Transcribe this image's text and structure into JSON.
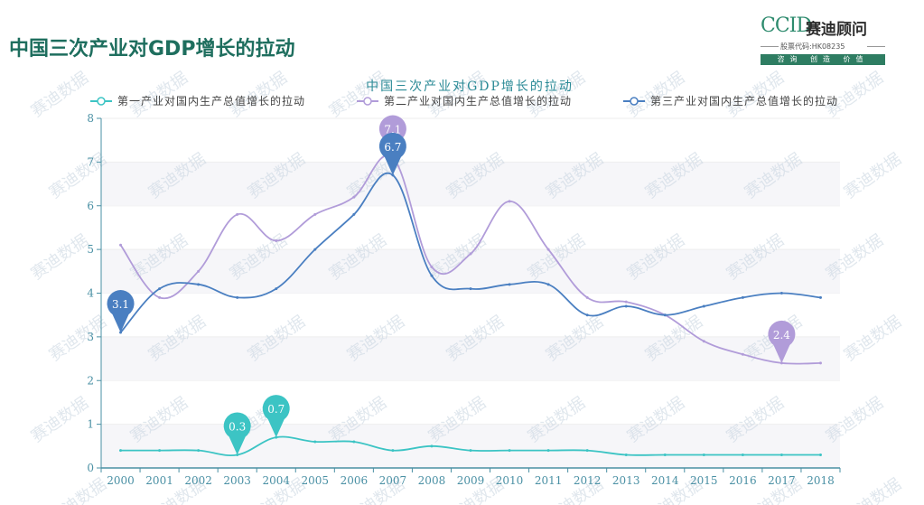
{
  "page": {
    "title": "中国三次产业对GDP增长的拉动"
  },
  "logo": {
    "brand": "CCID",
    "name": "赛迪顾问",
    "code": "股票代码:HK08235",
    "slogan": "咨询 创造 价值"
  },
  "watermark_text": "赛迪数据",
  "colors": {
    "series1": "#3cc4c4",
    "series2": "#b19cd9",
    "series3": "#4a7fc1",
    "title": "#1e6e5e",
    "axis": "#4a90a4"
  },
  "chart_data": {
    "type": "line",
    "title": "中国三次产业对GDP增长的拉动",
    "categories": [
      "2000",
      "2001",
      "2002",
      "2003",
      "2004",
      "2005",
      "2006",
      "2007",
      "2008",
      "2009",
      "2010",
      "2011",
      "2012",
      "2013",
      "2014",
      "2015",
      "2016",
      "2017",
      "2018"
    ],
    "ylim": [
      0,
      8
    ],
    "yticks": [
      "0",
      "1",
      "2",
      "3",
      "4",
      "5",
      "6",
      "7",
      "8"
    ],
    "legend_position": "top",
    "grid": "horizontal bands",
    "series": [
      {
        "name": "第一产业对国内生产总值增长的拉动",
        "values": [
          0.4,
          0.4,
          0.4,
          0.3,
          0.7,
          0.6,
          0.6,
          0.4,
          0.5,
          0.4,
          0.4,
          0.4,
          0.4,
          0.3,
          0.3,
          0.3,
          0.3,
          0.3,
          0.3
        ],
        "labels": [
          {
            "index": 3,
            "text": "0.3"
          },
          {
            "index": 4,
            "text": "0.7"
          }
        ]
      },
      {
        "name": "第二产业对国内生产总值增长的拉动",
        "values": [
          5.1,
          3.9,
          4.5,
          5.8,
          5.2,
          5.8,
          6.2,
          7.1,
          4.6,
          4.9,
          6.1,
          5.0,
          3.9,
          3.8,
          3.5,
          2.9,
          2.6,
          2.4,
          2.4
        ],
        "labels": [
          {
            "index": 7,
            "text": "7.1"
          },
          {
            "index": 17,
            "text": "2.4"
          }
        ]
      },
      {
        "name": "第三产业对国内生产总值增长的拉动",
        "values": [
          3.1,
          4.1,
          4.2,
          3.9,
          4.1,
          5.0,
          5.8,
          6.7,
          4.4,
          4.1,
          4.2,
          4.2,
          3.5,
          3.7,
          3.5,
          3.7,
          3.9,
          4.0,
          3.9
        ],
        "labels": [
          {
            "index": 0,
            "text": "3.1"
          },
          {
            "index": 7,
            "text": "6.7"
          }
        ]
      }
    ]
  }
}
